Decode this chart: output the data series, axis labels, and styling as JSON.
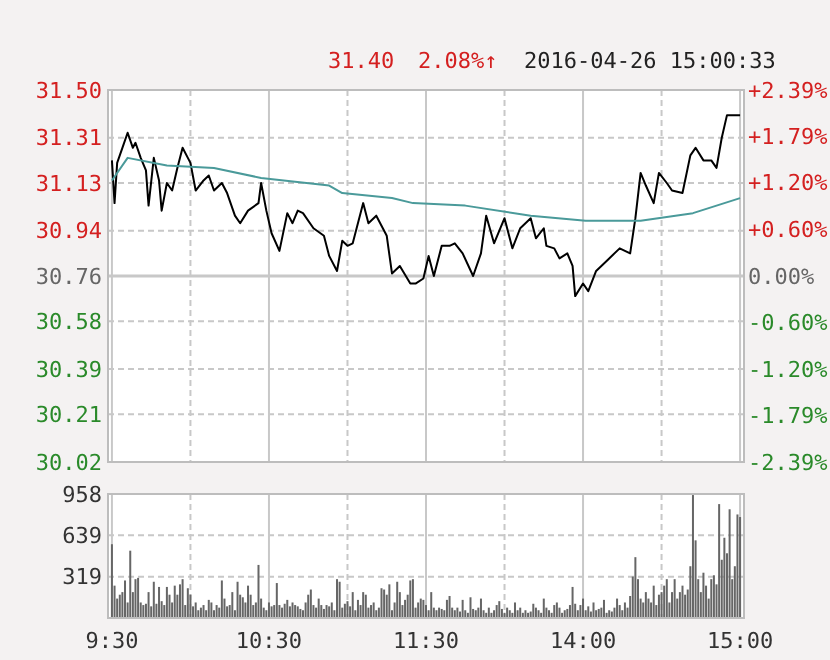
{
  "chart_data": [
    {
      "type": "line",
      "title": "2016-04-26 15:00:33",
      "annotations": [
        "31.40",
        "2.08%↑"
      ],
      "categories": [
        null,
        null,
        null,
        null,
        null,
        null,
        null,
        null,
        null,
        null,
        null,
        null,
        null,
        null,
        null,
        null,
        null,
        null,
        null,
        null,
        null,
        null,
        null,
        null,
        null,
        null,
        null,
        null,
        null,
        null,
        null,
        null,
        null,
        null,
        null,
        null,
        null,
        null,
        null,
        null,
        null,
        null,
        null,
        null,
        null,
        null,
        null,
        null,
        null,
        null,
        null,
        null,
        null,
        null,
        null,
        null,
        null,
        null,
        null,
        null,
        null,
        null,
        null,
        null,
        null,
        null,
        null,
        null,
        null,
        null,
        null,
        null,
        null,
        null,
        null,
        null,
        null,
        null,
        null,
        null,
        null,
        null,
        null,
        null,
        null,
        null,
        null,
        null,
        null,
        null,
        null,
        null,
        null,
        null,
        null,
        null,
        null,
        null,
        null,
        null,
        null,
        null,
        null,
        null,
        null,
        null,
        null,
        null,
        null,
        null,
        null,
        null,
        null,
        null,
        null,
        null,
        null,
        null,
        null,
        null,
        null,
        null,
        null,
        null,
        null,
        null,
        null,
        null,
        null,
        null,
        null,
        null,
        null,
        null,
        null,
        null,
        null,
        null,
        null,
        null,
        null,
        null,
        null,
        null,
        null,
        null,
        null,
        null,
        null,
        null,
        null,
        null,
        null,
        null,
        null,
        null,
        null,
        null,
        null,
        null,
        null,
        null,
        null,
        null,
        null,
        null,
        null,
        null,
        null,
        null,
        null,
        null,
        null,
        null,
        null,
        null,
        null,
        null,
        null,
        null,
        null,
        null,
        null,
        null,
        null,
        null,
        null,
        null,
        null,
        null,
        null,
        null,
        null,
        null,
        null,
        null,
        null,
        null,
        null,
        null,
        null,
        null,
        null,
        null,
        null,
        null,
        null,
        null,
        null,
        null,
        null,
        null,
        null,
        null,
        null,
        null,
        null,
        null,
        null,
        null,
        null,
        null,
        null,
        null,
        null,
        null,
        null,
        null,
        null,
        null,
        null,
        null,
        null,
        null,
        null,
        null,
        null,
        null,
        null,
        null,
        null
      ],
      "ylim": [
        30.02,
        31.5
      ],
      "yticks": [
        30.02,
        30.21,
        30.39,
        30.58,
        30.76,
        30.94,
        31.13,
        31.31,
        {
          "value": 31.5,
          "label": "31.50"
        }
      ],
      "y2lim": [
        -2.39,
        2.39
      ],
      "y2ticks": [
        {
          "value": -2.39,
          "label": "-2.39%"
        },
        {
          "value": -1.79,
          "label": "-1.79%"
        },
        {
          "value": -1.2,
          "label": "-1.20%"
        },
        {
          "value": -0.6,
          "label": "-0.60%"
        },
        {
          "value": 0,
          "label": "0.00%"
        },
        {
          "value": 0.6,
          "label": "+0.60%"
        },
        {
          "value": 1.2,
          "label": "+1.20%"
        },
        {
          "value": 1.79,
          "label": "+1.79%"
        },
        {
          "value": 2.39,
          "label": "+2.39%"
        }
      ],
      "ref_lines": [
        {
          "axis": "y",
          "value": 30.76,
          "color": "#c8c8c8",
          "line_style": "solid"
        }
      ],
      "grid": true,
      "line_style": "solid",
      "marker": "none",
      "series": [
        {
          "color": "#000000",
          "values": [
            31.22,
            31.05,
            31.21,
            null,
            31.27,
            null,
            31.33,
            null,
            31.27,
            31.29,
            null,
            31.23,
            null,
            31.18,
            31.04,
            null,
            31.23,
            null,
            31.14,
            31.02,
            null,
            31.13,
            null,
            31.1,
            null,
            31.19,
            null,
            31.27,
            null,
            null,
            31.21,
            null,
            31.1,
            null,
            null,
            31.14,
            null,
            31.16,
            null,
            31.1,
            null,
            null,
            31.13,
            null,
            31.09,
            null,
            null,
            31.0,
            null,
            30.97,
            null,
            null,
            31.02,
            null,
            null,
            null,
            31.05,
            31.13,
            null,
            31.02,
            null,
            30.93,
            null,
            null,
            30.86,
            null,
            null,
            31.01,
            null,
            30.97,
            null,
            31.02,
            null,
            31.01,
            null,
            null,
            null,
            30.95,
            null,
            null,
            null,
            30.92,
            null,
            30.84,
            null,
            null,
            30.78,
            null,
            30.9,
            null,
            30.88,
            null,
            30.89,
            null,
            null,
            null,
            31.05,
            null,
            30.97,
            null,
            null,
            31.0,
            null,
            null,
            null,
            30.92,
            null,
            30.77,
            null,
            null,
            30.8,
            null,
            null,
            null,
            30.73,
            null,
            30.73,
            null,
            null,
            30.75,
            null,
            30.84,
            null,
            30.76,
            null,
            null,
            30.88,
            null,
            null,
            30.88,
            null,
            30.89,
            null,
            null,
            30.85,
            null,
            null,
            null,
            30.76,
            null,
            null,
            30.85,
            null,
            31.0,
            null,
            null,
            30.89,
            null,
            null,
            null,
            30.99,
            null,
            null,
            30.87,
            null,
            null,
            30.95,
            null,
            null,
            null,
            30.99,
            null,
            30.91,
            null,
            null,
            30.95,
            30.88,
            null,
            null,
            30.87,
            null,
            30.83,
            null,
            null,
            30.85,
            null,
            30.8,
            30.68,
            null,
            null,
            30.73,
            null,
            30.7,
            null,
            null,
            30.78,
            null,
            null,
            null,
            null,
            30.83,
            null,
            null,
            null,
            30.87,
            null,
            null,
            null,
            30.85,
            null,
            30.99,
            null,
            31.17,
            null,
            31.12,
            null,
            null,
            31.05,
            null,
            31.17,
            null,
            null,
            31.13,
            null,
            31.1,
            null,
            null,
            null,
            31.09,
            null,
            null,
            31.24,
            null,
            31.27,
            null,
            null,
            31.22,
            null,
            null,
            31.22,
            null,
            31.19,
            null,
            31.31,
            null,
            31.4,
            null,
            null,
            null,
            31.4,
            31.4
          ]
        },
        {
          "color": "#4a9a9a",
          "values": [
            31.14,
            null,
            null,
            null,
            null,
            null,
            31.23,
            null,
            null,
            null,
            null,
            null,
            null,
            null,
            null,
            null,
            null,
            null,
            null,
            null,
            null,
            31.2,
            null,
            null,
            null,
            null,
            null,
            null,
            null,
            null,
            null,
            null,
            null,
            null,
            null,
            null,
            null,
            null,
            null,
            31.19,
            null,
            null,
            null,
            null,
            null,
            null,
            null,
            null,
            null,
            null,
            null,
            null,
            null,
            null,
            null,
            null,
            null,
            31.15,
            null,
            null,
            null,
            null,
            null,
            null,
            null,
            null,
            null,
            null,
            null,
            null,
            null,
            null,
            null,
            null,
            null,
            null,
            null,
            null,
            null,
            null,
            null,
            null,
            null,
            31.12,
            null,
            null,
            null,
            null,
            31.09,
            null,
            null,
            null,
            null,
            null,
            null,
            null,
            null,
            null,
            null,
            null,
            null,
            null,
            null,
            null,
            null,
            null,
            null,
            31.07,
            null,
            null,
            null,
            null,
            null,
            null,
            null,
            31.05,
            null,
            null,
            null,
            null,
            null,
            null,
            null,
            null,
            null,
            null,
            null,
            null,
            null,
            null,
            null,
            null,
            null,
            null,
            null,
            31.04,
            null,
            null,
            null,
            null,
            null,
            null,
            null,
            null,
            null,
            null,
            null,
            null,
            null,
            null,
            null,
            null,
            null,
            null,
            null,
            null,
            null,
            null,
            null,
            null,
            31.0,
            null,
            null,
            null,
            null,
            null,
            null,
            null,
            null,
            null,
            null,
            null,
            null,
            null,
            null,
            null,
            null,
            null,
            null,
            null,
            null,
            30.98,
            null,
            null,
            null,
            null,
            null,
            null,
            null,
            null,
            null,
            null,
            null,
            null,
            null,
            null,
            null,
            null,
            null,
            null,
            null,
            null,
            30.98,
            null,
            null,
            null,
            null,
            null,
            null,
            null,
            null,
            null,
            null,
            null,
            null,
            null,
            null,
            null,
            null,
            null,
            null,
            null,
            31.01,
            null,
            null,
            null,
            null,
            null,
            null,
            null,
            null,
            null,
            null,
            null,
            null,
            null,
            null,
            null,
            null,
            null,
            31.07
          ]
        }
      ]
    },
    {
      "type": "bar",
      "categories": [
        "9:30",
        null,
        null,
        null,
        null,
        null,
        null,
        null,
        null,
        null,
        null,
        null,
        null,
        null,
        null,
        null,
        null,
        null,
        null,
        null,
        null,
        null,
        null,
        null,
        null,
        null,
        null,
        null,
        null,
        null,
        null,
        null,
        null,
        null,
        null,
        null,
        null,
        null,
        null,
        null,
        null,
        null,
        null,
        null,
        null,
        null,
        null,
        null,
        null,
        null,
        null,
        null,
        null,
        null,
        null,
        null,
        null,
        null,
        null,
        null,
        "10:30",
        null,
        null,
        null,
        null,
        null,
        null,
        null,
        null,
        null,
        null,
        null,
        null,
        null,
        null,
        null,
        null,
        null,
        null,
        null,
        null,
        null,
        null,
        null,
        null,
        null,
        null,
        null,
        null,
        null,
        null,
        null,
        null,
        null,
        null,
        null,
        null,
        null,
        null,
        null,
        null,
        null,
        null,
        null,
        null,
        null,
        null,
        null,
        null,
        null,
        null,
        null,
        null,
        null,
        null,
        null,
        null,
        null,
        null,
        null,
        "11:30",
        null,
        null,
        null,
        null,
        null,
        null,
        null,
        null,
        null,
        null,
        null,
        null,
        null,
        null,
        null,
        null,
        null,
        null,
        null,
        null,
        null,
        null,
        null,
        null,
        null,
        null,
        null,
        null,
        null,
        null,
        null,
        null,
        null,
        null,
        null,
        null,
        null,
        null,
        null,
        null,
        null,
        null,
        null,
        null,
        null,
        null,
        null,
        null,
        null,
        null,
        null,
        null,
        null,
        null,
        null,
        null,
        null,
        null,
        null,
        "14:00",
        null,
        null,
        null,
        null,
        null,
        null,
        null,
        null,
        null,
        null,
        null,
        null,
        null,
        null,
        null,
        null,
        null,
        null,
        null,
        null,
        null,
        null,
        null,
        null,
        null,
        null,
        null,
        null,
        null,
        null,
        null,
        null,
        null,
        null,
        null,
        null,
        null,
        null,
        null,
        null,
        null,
        null,
        null,
        null,
        null,
        null,
        null,
        null,
        null,
        null,
        null,
        null,
        null,
        null,
        null,
        null,
        null,
        null,
        null,
        "15:00"
      ],
      "ylim": [
        0,
        958
      ],
      "yticks": [
        319,
        639,
        958
      ],
      "grid": true,
      "color": "#666666",
      "values": [
        570,
        250,
        150,
        180,
        200,
        290,
        120,
        520,
        200,
        300,
        310,
        120,
        100,
        110,
        200,
        90,
        280,
        110,
        240,
        130,
        100,
        240,
        180,
        120,
        250,
        180,
        260,
        300,
        100,
        230,
        180,
        90,
        120,
        60,
        80,
        100,
        60,
        140,
        120,
        60,
        100,
        80,
        290,
        150,
        90,
        100,
        200,
        60,
        280,
        180,
        160,
        120,
        250,
        180,
        100,
        120,
        410,
        150,
        80,
        60,
        120,
        90,
        100,
        270,
        100,
        80,
        110,
        140,
        90,
        120,
        100,
        90,
        70,
        60,
        120,
        180,
        220,
        100,
        80,
        150,
        100,
        70,
        100,
        90,
        120,
        60,
        300,
        280,
        80,
        110,
        130,
        90,
        200,
        60,
        140,
        100,
        200,
        180,
        80,
        100,
        120,
        60,
        80,
        230,
        220,
        180,
        260,
        60,
        120,
        280,
        200,
        100,
        140,
        180,
        290,
        300,
        80,
        120,
        150,
        140,
        100,
        60,
        200,
        80,
        60,
        80,
        70,
        60,
        140,
        170,
        80,
        60,
        80,
        50,
        140,
        60,
        40,
        160,
        70,
        60,
        80,
        150,
        60,
        40,
        80,
        40,
        60,
        100,
        130,
        70,
        40,
        80,
        60,
        40,
        120,
        60,
        80,
        40,
        60,
        40,
        50,
        110,
        80,
        60,
        40,
        150,
        80,
        60,
        40,
        100,
        120,
        80,
        40,
        60,
        70,
        100,
        240,
        110,
        60,
        100,
        150,
        60,
        90,
        50,
        120,
        60,
        70,
        80,
        140,
        40,
        60,
        50,
        80,
        150,
        100,
        60,
        120,
        80,
        170,
        320,
        470,
        300,
        150,
        120,
        200,
        150,
        120,
        250,
        100,
        180,
        200,
        250,
        300,
        120,
        200,
        300,
        150,
        200,
        250,
        180,
        220,
        400,
        950,
        600,
        300,
        200,
        350,
        250,
        150,
        300,
        330,
        260,
        880,
        450,
        620,
        500,
        840,
        300,
        400,
        800,
        780
      ]
    }
  ]
}
